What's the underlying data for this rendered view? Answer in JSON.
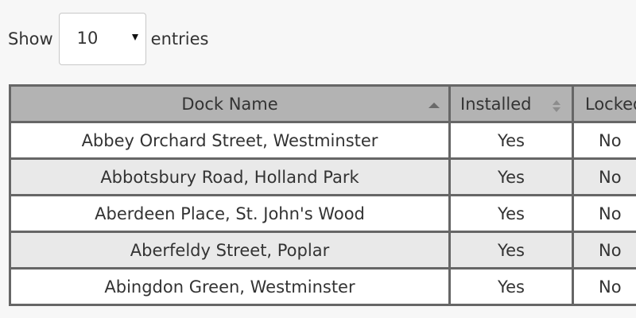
{
  "length_control": {
    "prefix": "Show",
    "selected": "10",
    "suffix": "entries"
  },
  "table": {
    "columns": [
      {
        "label": "Dock Name",
        "sort": "ascending"
      },
      {
        "label": "Installed",
        "sort": "none"
      },
      {
        "label": "Locked",
        "sort": "none"
      }
    ],
    "rows": [
      {
        "name": "Abbey Orchard Street, Westminster",
        "installed": "Yes",
        "locked": "No"
      },
      {
        "name": "Abbotsbury Road, Holland Park",
        "installed": "Yes",
        "locked": "No"
      },
      {
        "name": "Aberdeen Place, St. John's Wood",
        "installed": "Yes",
        "locked": "No"
      },
      {
        "name": "Aberfeldy Street, Poplar",
        "installed": "Yes",
        "locked": "No"
      },
      {
        "name": "Abingdon Green, Westminster",
        "installed": "Yes",
        "locked": "No"
      }
    ]
  },
  "colors": {
    "page_background": "#f7f7f7",
    "header_background": "#b3b3b3",
    "row_odd": "#ffffff",
    "row_even": "#e9e9e9",
    "border": "#666666",
    "text": "#333333"
  },
  "icons": {
    "select_arrow": "triangle-down-icon",
    "sort_ascending": "sort-ascending-icon",
    "sort_both": "sort-both-icon"
  }
}
